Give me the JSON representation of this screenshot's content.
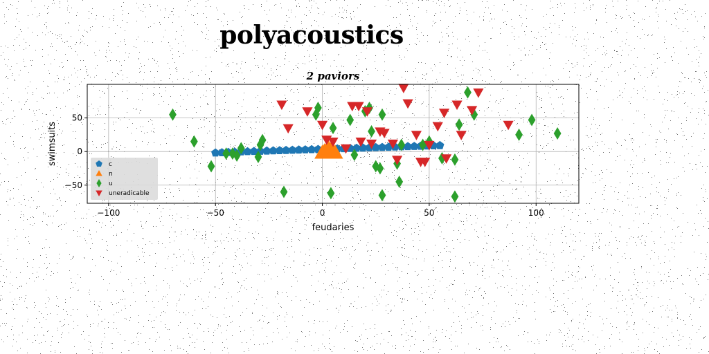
{
  "page": {
    "title": "polyacoustics"
  },
  "chart_data": {
    "type": "scatter",
    "title": "2 paviors",
    "xlabel": "feudaries",
    "ylabel": "swimsuits",
    "xlim": [
      -110,
      120
    ],
    "ylim": [
      -77,
      100
    ],
    "xticks": [
      -100,
      -50,
      0,
      50,
      100
    ],
    "yticks": [
      -50,
      0,
      50
    ],
    "grid": true,
    "legend_position": "lower-left",
    "series": [
      {
        "name": "c",
        "marker": "pentagon",
        "color": "#1f77b4",
        "x": [
          -50,
          -47,
          -44,
          -41,
          -38,
          -35,
          -32,
          -29,
          -26,
          -23,
          -20,
          -17,
          -14,
          -11,
          -8,
          -5,
          -2,
          1,
          4,
          7,
          10,
          13,
          16,
          19,
          22,
          25,
          28,
          31,
          34,
          37,
          40,
          43,
          46,
          49,
          52,
          55
        ],
        "y": [
          -2,
          -1.6,
          -1.2,
          -0.8,
          -0.4,
          0,
          0.3,
          0.6,
          0.9,
          1.2,
          1.5,
          1.8,
          2.1,
          2.4,
          2.7,
          3,
          3.3,
          3.6,
          3.9,
          4.2,
          4.5,
          4.8,
          5.1,
          5.4,
          5.7,
          6,
          6.3,
          6.6,
          6.9,
          7.2,
          7.5,
          7.8,
          8.1,
          8.4,
          8.7,
          9
        ]
      },
      {
        "name": "n",
        "marker": "triangle-up",
        "color": "#ff7f0e",
        "x": [
          0,
          1,
          2,
          3,
          4,
          5,
          6
        ],
        "y": [
          -2,
          0,
          2,
          4,
          2,
          0,
          -2
        ]
      },
      {
        "name": "u",
        "marker": "thin-diamond",
        "color": "#2ca02c",
        "x": [
          -70,
          -60,
          -52,
          -45,
          -42,
          -40,
          -38,
          -30,
          -29,
          -28,
          -18,
          -3,
          -2,
          5,
          4,
          13,
          15,
          20,
          22,
          23,
          25,
          27,
          28,
          28,
          35,
          36,
          37,
          50,
          56,
          62,
          64,
          68,
          71,
          62,
          92,
          98,
          110,
          47
        ],
        "y": [
          55,
          15,
          -22,
          -3,
          -3,
          -6,
          5,
          -8,
          10,
          17,
          -60,
          55,
          65,
          35,
          -62,
          47,
          -5,
          60,
          65,
          30,
          -22,
          -25,
          55,
          -65,
          -18,
          -45,
          10,
          15,
          -10,
          -12,
          40,
          88,
          55,
          -67,
          25,
          47,
          27,
          10
        ]
      },
      {
        "name": "uneradicable",
        "marker": "triangle-down",
        "color": "#d62728",
        "x": [
          -19,
          -16,
          -7,
          0,
          2,
          5,
          11,
          14,
          17,
          18,
          21,
          23,
          27,
          29,
          33,
          35,
          38,
          40,
          44,
          46,
          48,
          50,
          54,
          57,
          58,
          63,
          65,
          70,
          73,
          87
        ],
        "y": [
          70,
          35,
          60,
          40,
          18,
          15,
          5,
          68,
          68,
          15,
          60,
          12,
          30,
          28,
          12,
          -12,
          95,
          72,
          25,
          -15,
          -15,
          10,
          38,
          58,
          -10,
          70,
          25,
          62,
          88,
          40
        ]
      }
    ]
  }
}
